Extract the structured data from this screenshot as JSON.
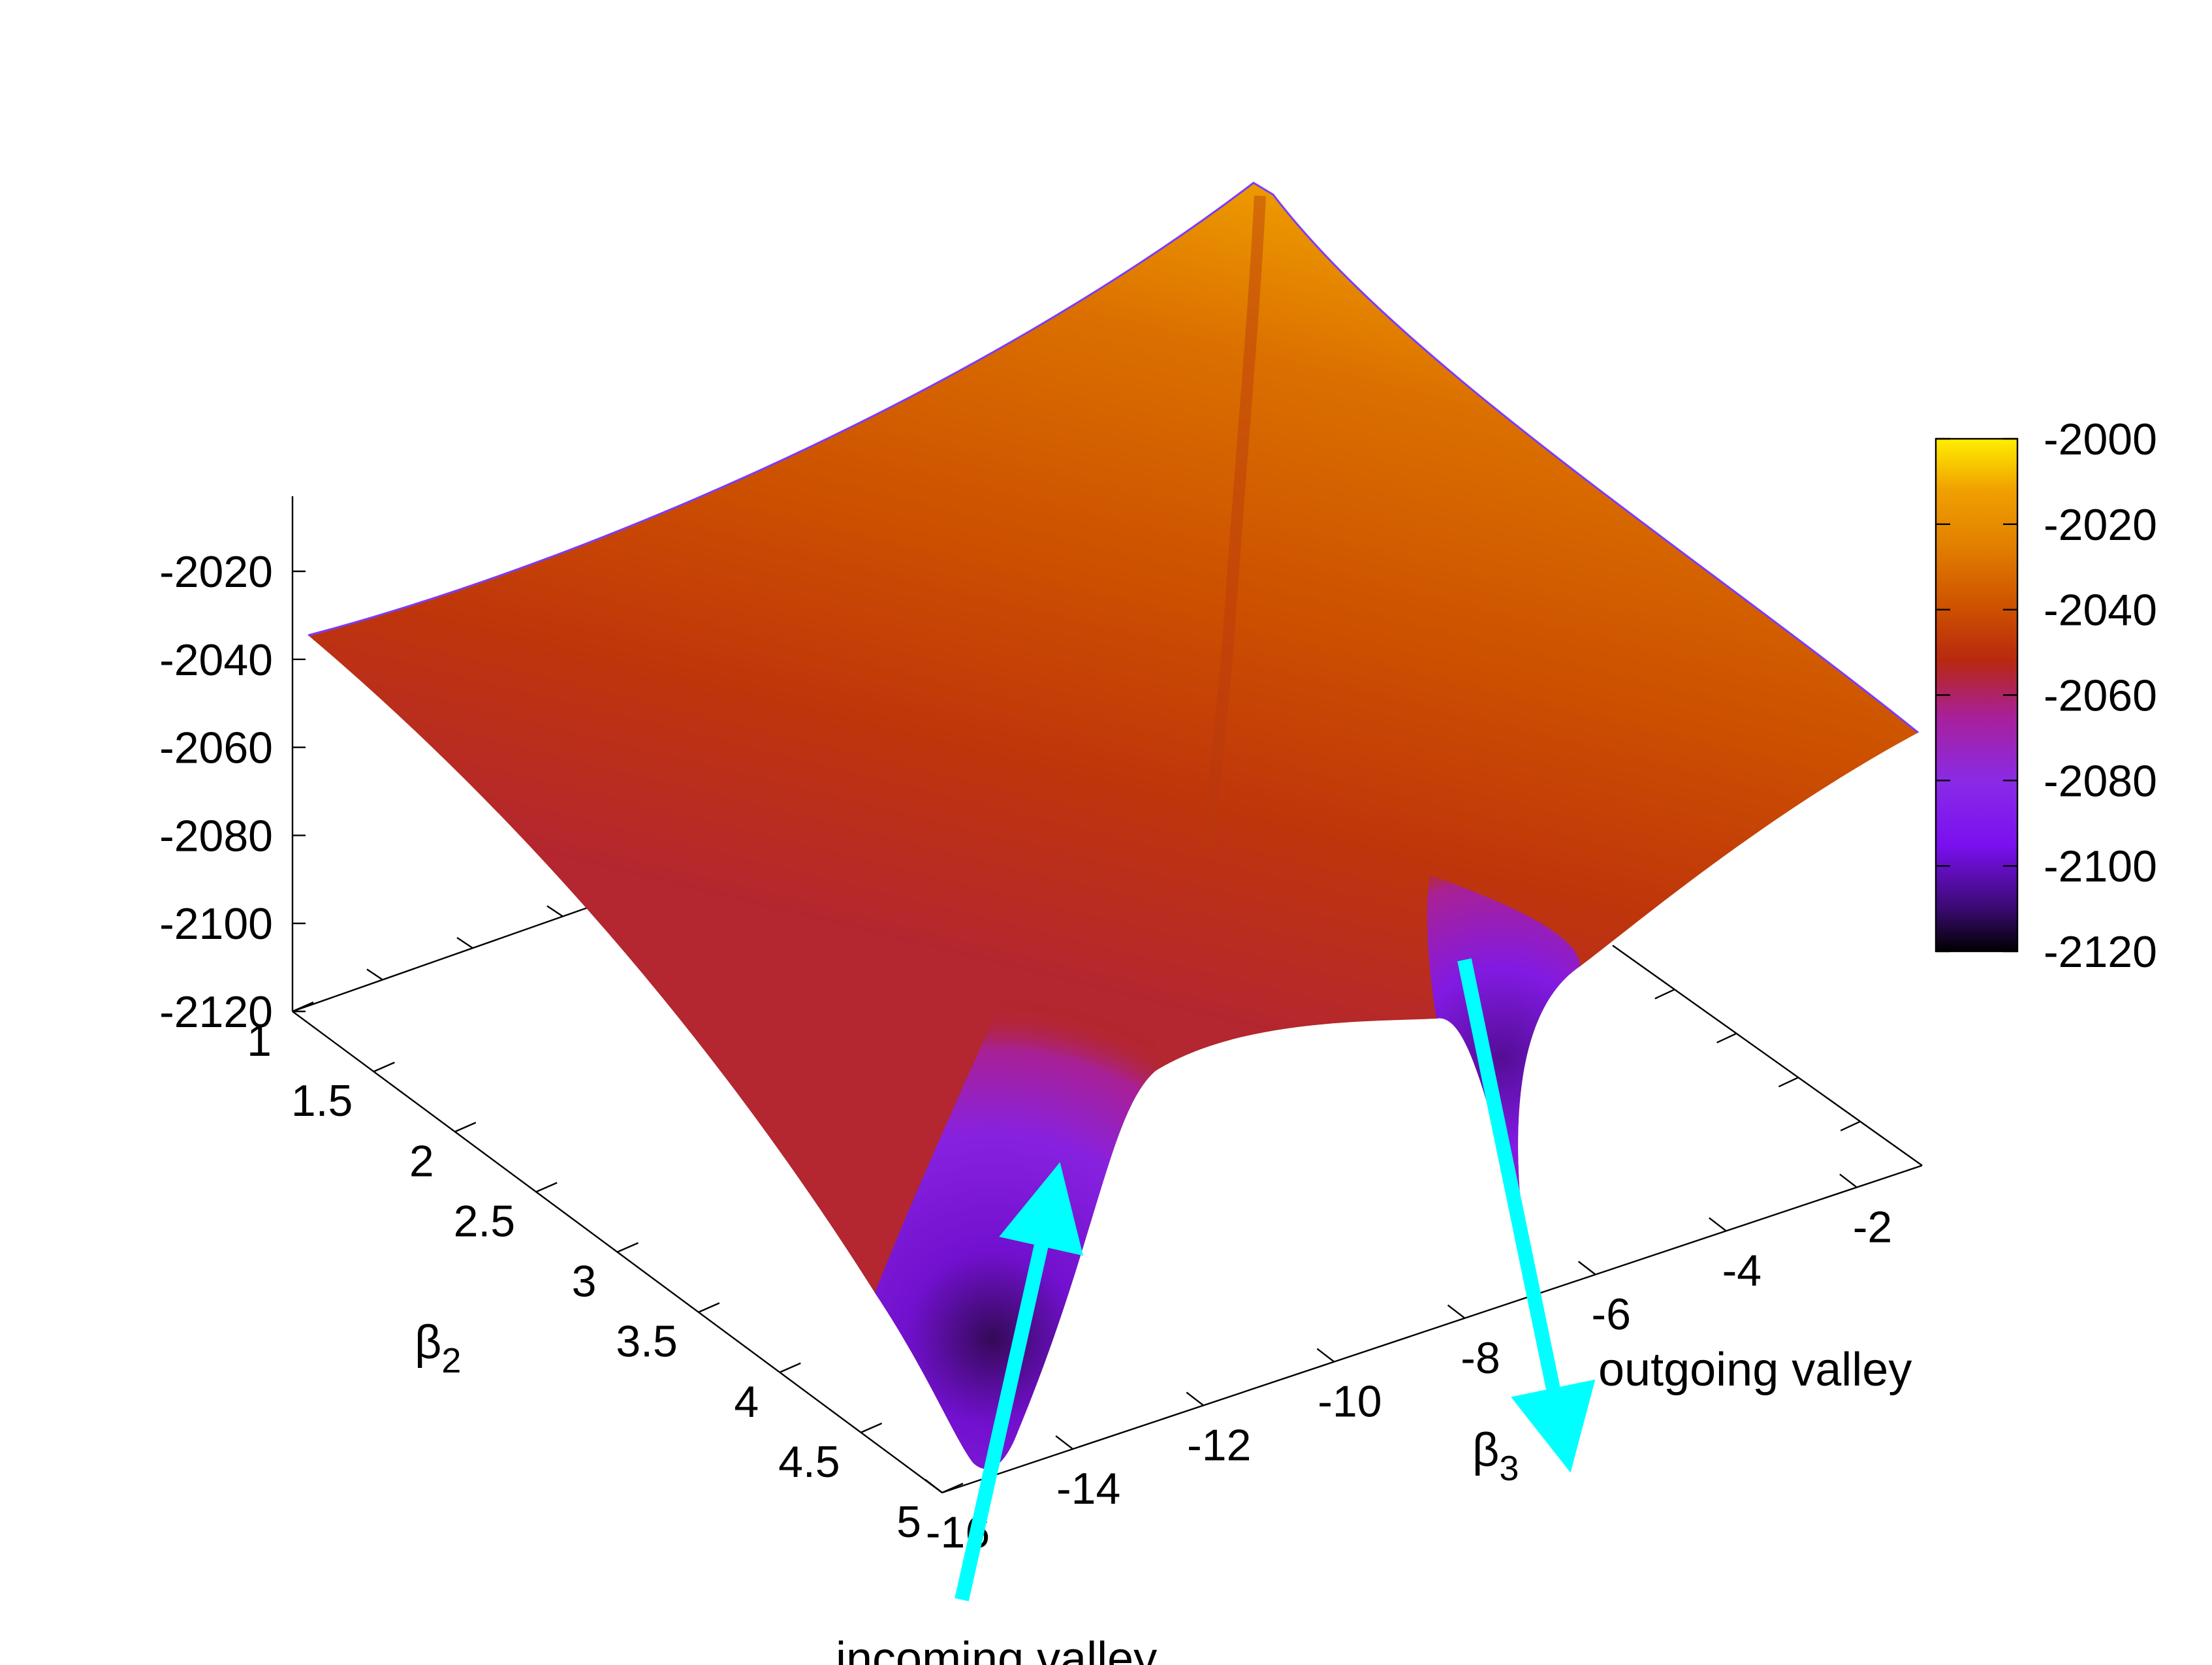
{
  "chart_data": {
    "type": "surface3d",
    "title": "",
    "xlabel": {
      "main": "β",
      "sub": "2"
    },
    "ylabel": {
      "main": "β",
      "sub": "3"
    },
    "zlabel": "",
    "x_ticks": [
      "1",
      "1.5",
      "2",
      "2.5",
      "3",
      "3.5",
      "4",
      "4.5",
      "5"
    ],
    "x_tick_values": [
      1,
      1.5,
      2,
      2.5,
      3,
      3.5,
      4,
      4.5,
      5
    ],
    "y_ticks": [
      "-16",
      "-14",
      "-12",
      "-10",
      "-8",
      "-6",
      "-4",
      "-2"
    ],
    "y_tick_values": [
      -16,
      -14,
      -12,
      -10,
      -8,
      -6,
      -4,
      -2
    ],
    "z_ticks": [
      "-2020",
      "-2040",
      "-2060",
      "-2080",
      "-2100",
      "-2120"
    ],
    "z_tick_values": [
      -2020,
      -2040,
      -2060,
      -2080,
      -2100,
      -2120
    ],
    "xlim": [
      1,
      5
    ],
    "ylim": [
      -16,
      -1
    ],
    "zlim": [
      -2120,
      -2000
    ],
    "colorbar": {
      "ticks": [
        "-2000",
        "-2020",
        "-2040",
        "-2060",
        "-2080",
        "-2100",
        "-2120"
      ],
      "tick_values": [
        -2000,
        -2020,
        -2040,
        -2060,
        -2080,
        -2100,
        -2120
      ],
      "range": [
        -2120,
        -2000
      ],
      "palette": [
        "#000000",
        "#3a0a70",
        "#7a10f0",
        "#8a2ae6",
        "#a8209a",
        "#b82810",
        "#cc5000",
        "#e28000",
        "#f0a000",
        "#ffee00"
      ],
      "palette_values": [
        -2120,
        -2110,
        -2095,
        -2080,
        -2065,
        -2052,
        -2040,
        -2025,
        -2012,
        -2000
      ]
    },
    "surface_samples": [
      {
        "x": 1,
        "y": -16,
        "z": -2036
      },
      {
        "x": 1,
        "y": -1,
        "z": -2006
      },
      {
        "x": 5,
        "y": -1,
        "z": -2040
      },
      {
        "x": 5,
        "y": -16,
        "z": -2122
      },
      {
        "x": 3,
        "y": -8,
        "z": -2080
      }
    ],
    "annotations": [
      {
        "label": "incoming valley",
        "arrow_color": "#00ffff"
      },
      {
        "label": "outgoing valley",
        "arrow_color": "#00ffff"
      }
    ]
  }
}
